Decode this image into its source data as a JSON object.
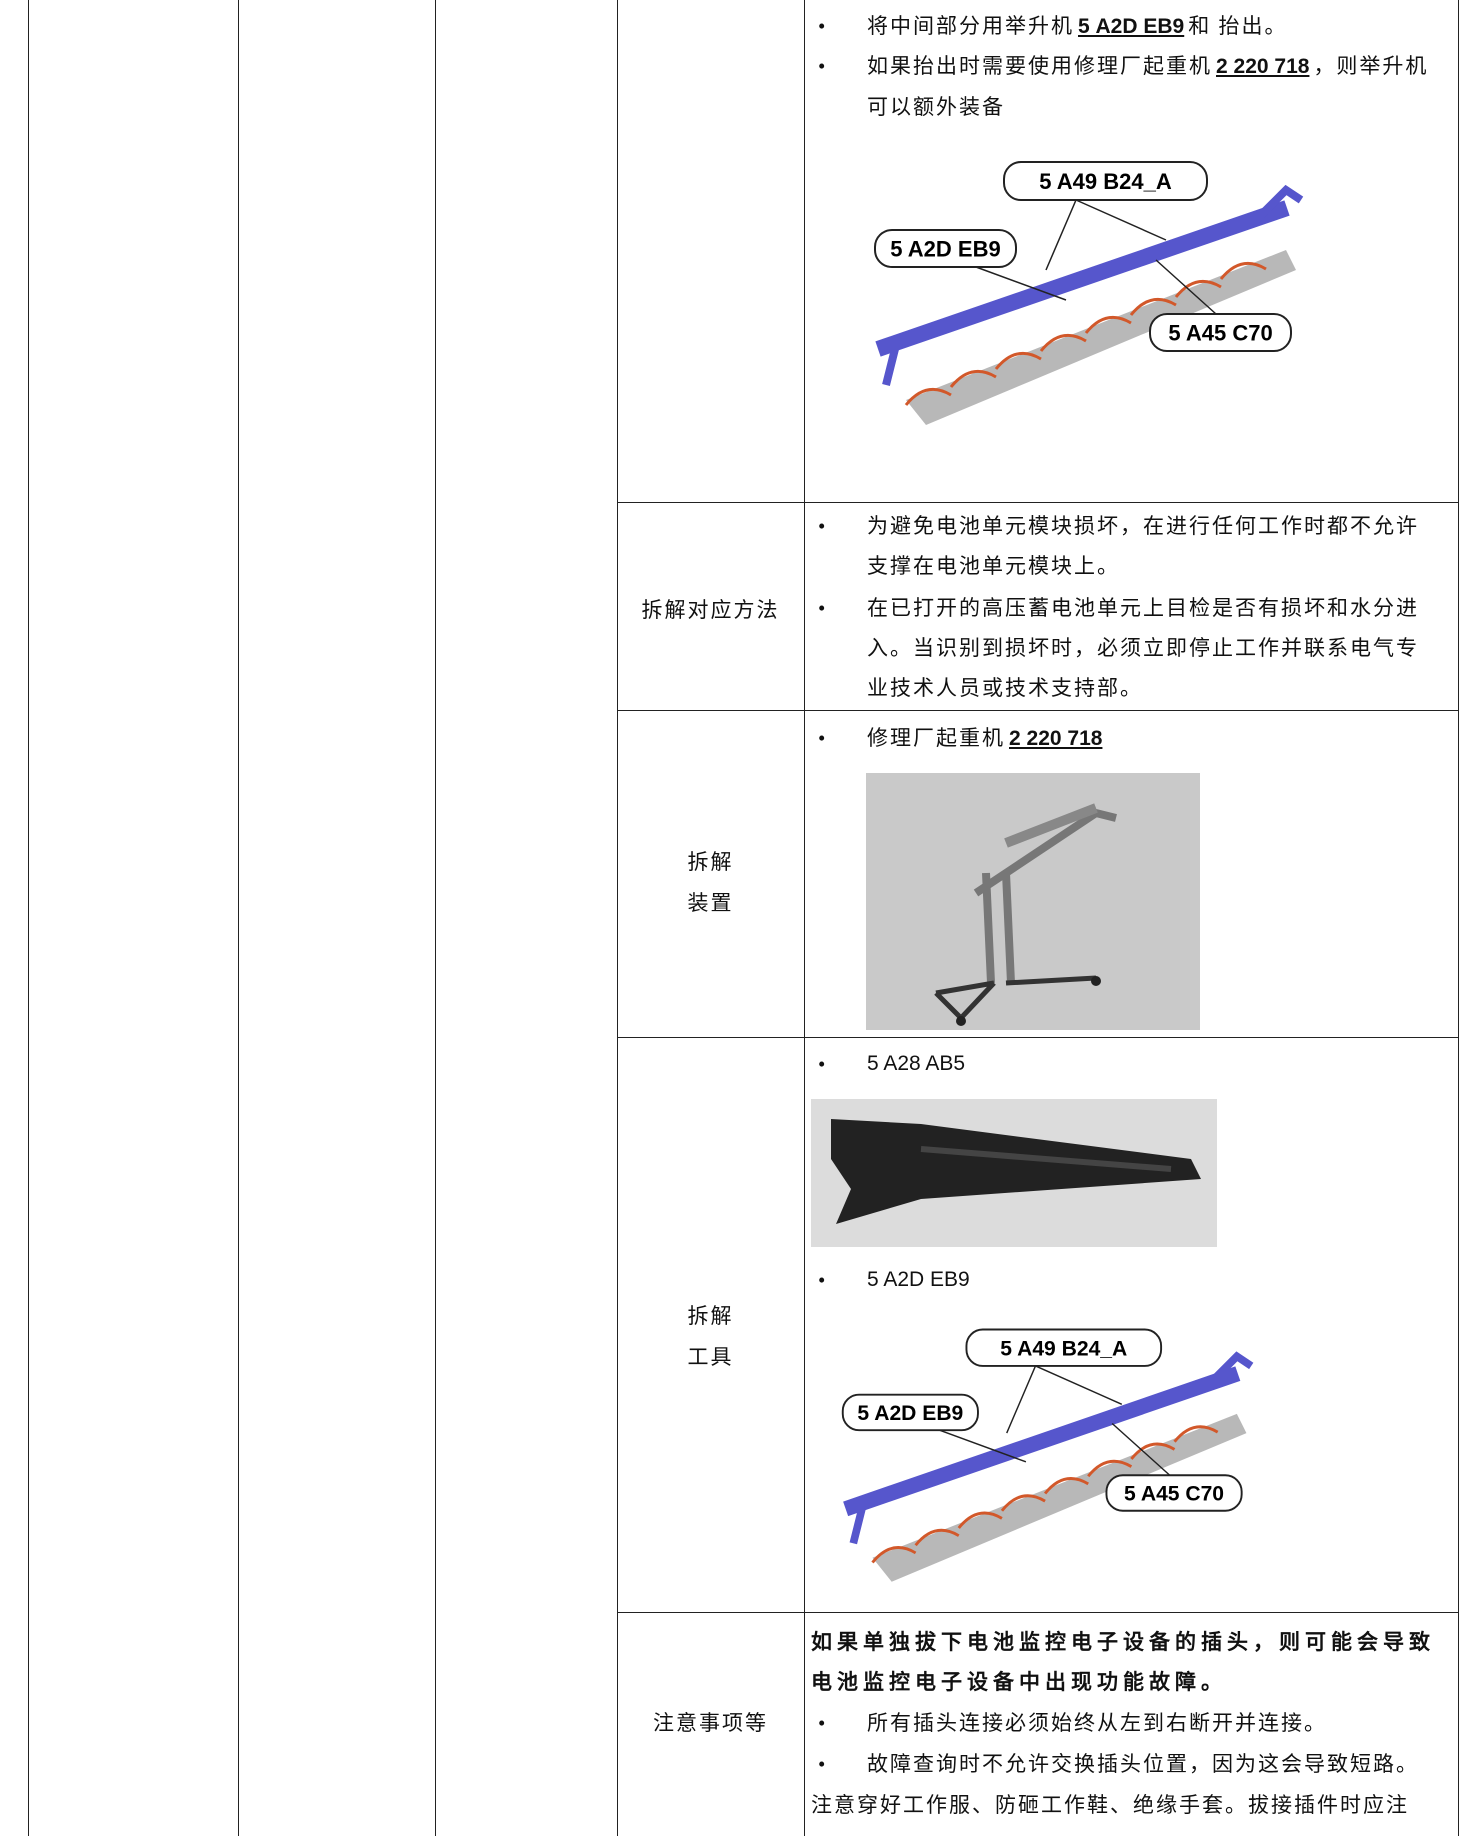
{
  "table": {
    "rows": [
      {
        "bullets": [
          {
            "text": "将中间部分用举升机",
            "link": "5 A2D EB9",
            "after": "和 抬出。"
          },
          {
            "text": "如果抬出时需要使用修理厂起重机",
            "link": "2 220 718",
            "after": "，则举升机可以额外装备"
          }
        ],
        "figure_callouts": [
          "5 A49 B24_A",
          "5 A2D EB9",
          "5 A45 C70"
        ]
      },
      {
        "label": [
          "拆解对应方法"
        ],
        "bullets": [
          "为避免电池单元模块损坏，在进行任何工作时都不允许支撑在电池单元模块上。",
          "在已打开的高压蓄电池单元上目检是否有损坏和水分进入。当识别到损坏时，必须立即停止工作并联系电气专业技术人员或技术支持部。"
        ]
      },
      {
        "label": [
          "拆解",
          "装置"
        ],
        "bullets": [
          {
            "text": "修理厂起重机",
            "link": "2 220 718"
          }
        ]
      },
      {
        "label": [
          "拆解",
          "工具"
        ],
        "bullets": [
          "5 A28 AB5",
          "5 A2D EB9"
        ],
        "figure_callouts": [
          "5 A49 B24_A",
          "5 A2D EB9",
          "5 A45 C70"
        ]
      },
      {
        "label": [
          "注意事项等"
        ],
        "bold": "如果单独拔下电池监控电子设备的插头，则可能会导致电池监控电子设备中出现功能故障。",
        "bullets": [
          "所有插头连接必须始终从左到右断开并连接。",
          "故障查询时不允许交换插头位置，因为这会导致短路。"
        ],
        "text": "注意穿好工作服、防砸工作鞋、绝缘手套。拔接插件时应注"
      }
    ]
  }
}
